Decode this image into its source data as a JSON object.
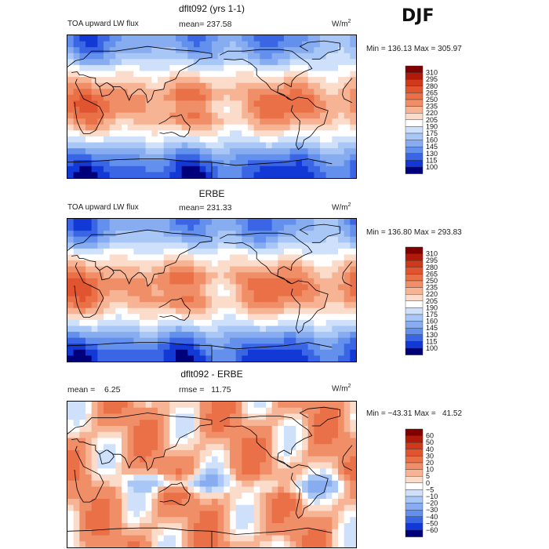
{
  "season": "DJF",
  "panels": [
    {
      "id": "model",
      "title": "dflt092 (yrs 1-1)",
      "left_label": "TOA upward LW flux",
      "stat1": "mean= 237.58",
      "stat2": "",
      "units_base": "W/m",
      "units_exp": "2",
      "minmax": "Min = 136.13 Max = 305.97",
      "field": "abs",
      "scale": [
        "310",
        "295",
        "280",
        "265",
        "250",
        "235",
        "220",
        "205",
        "190",
        "175",
        "160",
        "145",
        "130",
        "115",
        "100"
      ]
    },
    {
      "id": "obs",
      "title": "ERBE",
      "left_label": "TOA upward LW flux",
      "stat1": "mean= 231.33",
      "stat2": "",
      "units_base": "W/m",
      "units_exp": "2",
      "minmax": "Min = 136.80 Max = 293.83",
      "field": "abs",
      "scale": [
        "310",
        "295",
        "280",
        "265",
        "250",
        "235",
        "220",
        "205",
        "190",
        "175",
        "160",
        "145",
        "130",
        "115",
        "100"
      ]
    },
    {
      "id": "diff",
      "title": "dflt092 - ERBE",
      "left_label": "mean =    6.25",
      "stat1": "",
      "stat2": "rmse =   11.75",
      "units_base": "W/m",
      "units_exp": "2",
      "minmax": "Min = −43.31 Max =   41.52",
      "field": "diff",
      "scale": [
        "60",
        "50",
        "40",
        "30",
        "20",
        "10",
        "5",
        "0",
        "−5",
        "−10",
        "−20",
        "−30",
        "−40",
        "−50",
        "−60"
      ]
    }
  ],
  "colors": {
    "abs": [
      "#800000",
      "#b01a0a",
      "#d03a1a",
      "#e05530",
      "#ea7048",
      "#f08e68",
      "#f7b495",
      "#fbdccb",
      "#ffffff",
      "#cfe0fb",
      "#a9c7f6",
      "#87acf0",
      "#6290ec",
      "#3a66e6",
      "#1238d6",
      "#00007a"
    ],
    "diff": [
      "#800000",
      "#b01a0a",
      "#d03a1a",
      "#e05530",
      "#ea7048",
      "#f08e68",
      "#f7b495",
      "#fbdccb",
      "#ffffff",
      "#cfe0fb",
      "#a9c7f6",
      "#87acf0",
      "#6290ec",
      "#3a66e6",
      "#1238d6",
      "#00007a"
    ]
  }
}
